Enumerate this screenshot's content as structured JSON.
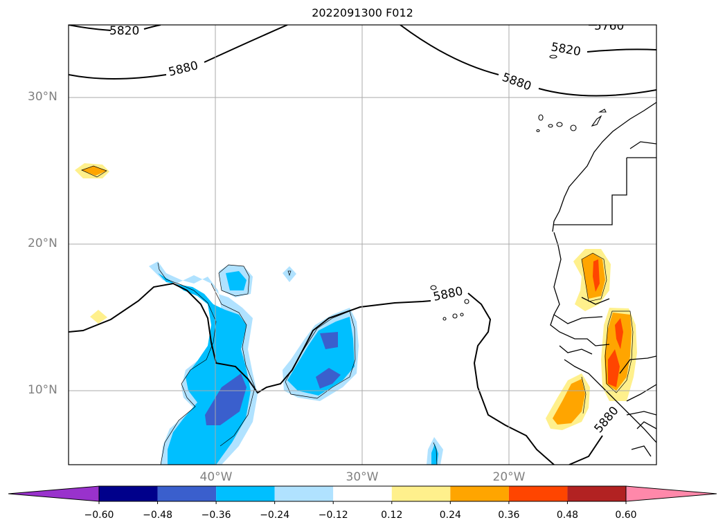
{
  "title": "2022091300 F012",
  "map": {
    "lon_range": [
      -50,
      -10
    ],
    "lat_range": [
      5,
      35
    ],
    "lat_labels": [
      "30°N",
      "20°N",
      "10°N"
    ],
    "lon_labels": [
      "40°W",
      "30°W",
      "20°W"
    ],
    "grid": true,
    "contour_labels": [
      "5820",
      "5880",
      "5760",
      "5820",
      "5880",
      "5880",
      "5880"
    ]
  },
  "colorbar": {
    "ticks": [
      "−0.60",
      "−0.48",
      "−0.36",
      "−0.24",
      "−0.12",
      "0.12",
      "0.24",
      "0.36",
      "0.48",
      "0.60"
    ],
    "colors": [
      "#9932cc",
      "#00008b",
      "#3a5fcd",
      "#00bfff",
      "#b0e2ff",
      "#ffffff",
      "#fff08c",
      "#ffa500",
      "#ff4500",
      "#b22222",
      "#ff88aa"
    ],
    "extend": "both"
  }
}
